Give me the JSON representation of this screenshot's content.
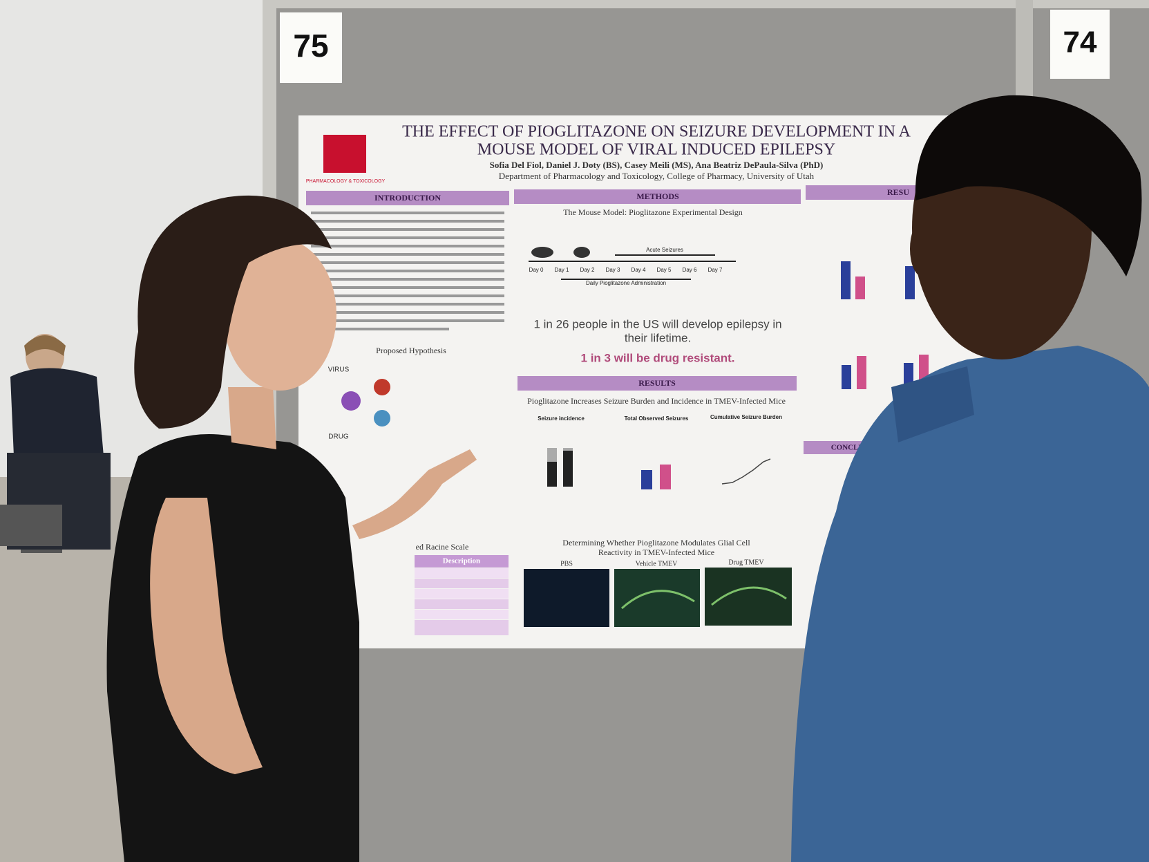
{
  "cards": {
    "left": "75",
    "right": "74"
  },
  "poster": {
    "affiliation_logo": "PHARMACOLOGY & TOXICOLOGY",
    "title": [
      "THE EFFECT OF PIOGLITAZONE ON SEIZURE DEVELOPMENT IN A",
      "MOUSE MODEL OF VIRAL INDUCED EPILEPSY"
    ],
    "authors": "Sofia Del Fiol, Daniel J. Doty (BS), Casey Meili (MS), Ana Beatriz DePaula-Silva (PhD)",
    "department": "Department of Pharmacology and Toxicology, College of Pharmacy, University of Utah",
    "introduction": {
      "heading": "INTRODUCTION",
      "hypothesis": "Proposed Hypothesis",
      "virus": "VIRUS",
      "drug": "DRUG",
      "scale": "ed Racine Scale",
      "description": "Description"
    },
    "methods": {
      "heading": "METHODS",
      "subtitle": "The Mouse Model: Pioglitazone Experimental Design",
      "acute": "Acute Seizures",
      "days": [
        "Day 0",
        "Day 1",
        "Day 2",
        "Day 3",
        "Day 4",
        "Day 5",
        "Day 6",
        "Day 7"
      ],
      "daily": "Daily Pioglitazone Administration",
      "stat_lines": [
        "1 in 26 people in the US will develop epilepsy in",
        "their lifetime."
      ],
      "resist": "1 in 3 will be drug resistant."
    },
    "results": {
      "heading": "RESULTS",
      "subtitle": "Pioglitazone Increases Seizure Burden and Incidence in TMEV-Infected Mice",
      "panels": [
        "Seizure incidence",
        "Total Observed Seizures",
        "Cumulative Seizure Burden"
      ],
      "glial": [
        "Determining Whether Pioglitazone Modulates Glial Cell",
        "Reactivity in TMEV-Infected Mice"
      ],
      "images": [
        "PBS",
        "Vehicle TMEV",
        "Drug TMEV"
      ]
    },
    "results_right": {
      "heading": "RESU"
    },
    "conclusion": {
      "heading": "CONCLUSION"
    }
  }
}
